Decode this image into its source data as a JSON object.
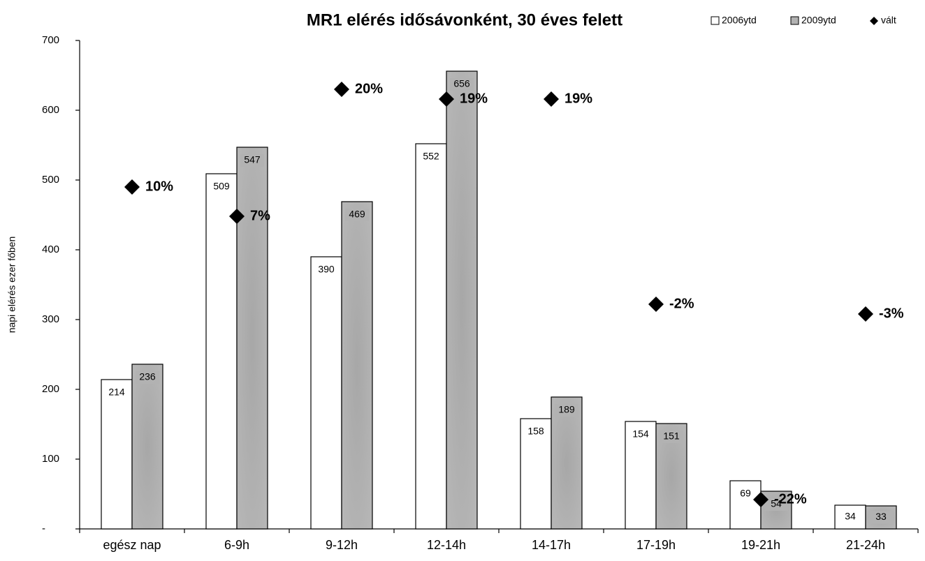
{
  "chart_data": {
    "type": "bar",
    "title": "MR1 elérés idősávonként, 30 éves felett",
    "y_label": "napi elérés ezer főben",
    "categories": [
      "egész nap",
      "6-9h",
      "9-12h",
      "12-14h",
      "14-17h",
      "17-19h",
      "19-21h",
      "21-24h"
    ],
    "series": [
      {
        "name": "2006ytd",
        "color": "#ffffff",
        "values": [
          214,
          509,
          390,
          552,
          158,
          154,
          69,
          34
        ]
      },
      {
        "name": "2009ytd",
        "color": "#b2b2b2",
        "values": [
          236,
          547,
          469,
          656,
          189,
          151,
          54,
          33
        ]
      },
      {
        "name": "vált",
        "color": "#000000",
        "type": "scatter",
        "marker": "diamond",
        "axis": "y2",
        "values": [
          10,
          7,
          20,
          19,
          19,
          -2,
          -22,
          -3
        ],
        "value_labels": [
          "10%",
          "7%",
          "20%",
          "19%",
          "19%",
          "-2%",
          "-22%",
          "-3%"
        ]
      }
    ],
    "ylim": [
      0,
      700
    ],
    "yticks": [
      {
        "value": 0,
        "label": "-"
      },
      100,
      200,
      300,
      400,
      500,
      600,
      700
    ],
    "y2lim": [
      -25,
      25
    ],
    "grid": false,
    "legend": "top-right"
  }
}
